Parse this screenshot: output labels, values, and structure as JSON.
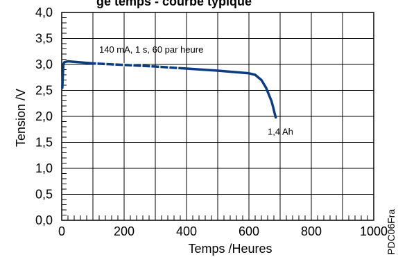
{
  "chart_data": {
    "type": "line",
    "title": "ge temps - courbe typique",
    "xlabel": "Temps /Heures",
    "ylabel": "Tension /V",
    "xlim": [
      0,
      1000
    ],
    "ylim": [
      0,
      4
    ],
    "x_ticks": [
      0,
      200,
      400,
      600,
      800,
      1000
    ],
    "x_tick_labels": [
      "0",
      "200",
      "400",
      "600",
      "800",
      "1000"
    ],
    "x_minor_step": 20,
    "y_ticks": [
      0,
      0.5,
      1,
      1.5,
      2,
      2.5,
      3,
      3.5,
      4
    ],
    "y_tick_labels": [
      "0,0",
      "0,5",
      "1,0",
      "1,5",
      "2,0",
      "2,5",
      "3,0",
      "3,5",
      "4,0"
    ],
    "y_minor_step": 0.1,
    "grid": true,
    "line_color": "#0b3c7d",
    "series": [
      {
        "x": [
          2,
          5,
          8,
          12,
          20,
          40,
          100,
          200,
          300,
          400,
          500,
          560,
          600,
          620,
          640,
          655,
          665,
          672,
          678,
          682,
          686
        ],
        "y": [
          2.55,
          3.0,
          3.04,
          3.05,
          3.06,
          3.05,
          3.02,
          2.99,
          2.96,
          2.92,
          2.88,
          2.85,
          2.83,
          2.8,
          2.7,
          2.55,
          2.4,
          2.3,
          2.17,
          2.07,
          1.98
        ]
      }
    ],
    "dashed_segment_x": [
      110,
      380
    ],
    "annotations": [
      {
        "text": "140 mA,  1 s, 60 par heure",
        "x": 120,
        "y": 3.23
      },
      {
        "text": "1,4 Ah",
        "x": 660,
        "y": 1.65
      }
    ],
    "code_label": "PDC06Fra"
  }
}
